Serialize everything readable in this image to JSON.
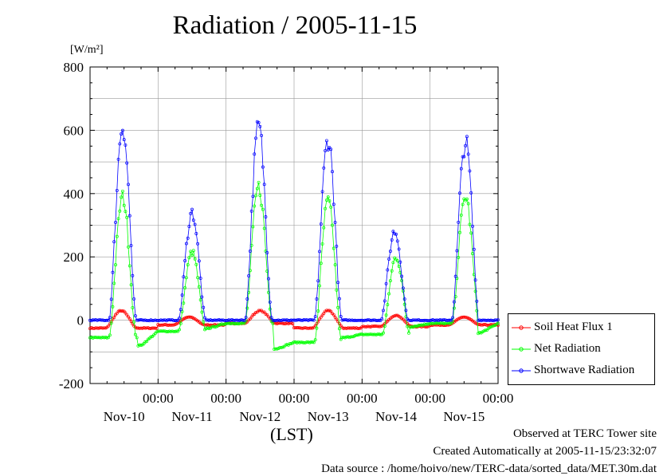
{
  "chart_data": {
    "type": "line",
    "title": "Radiation / 2005-11-15",
    "ylabel": "[W/m²]",
    "xlabel": "(LST)",
    "ylim": [
      -200,
      800
    ],
    "y_ticks": [
      -200,
      0,
      200,
      400,
      600,
      800
    ],
    "x_range_hours": [
      0,
      144
    ],
    "x_ticks": [
      {
        "time": "00:00",
        "date": "Nov-10",
        "hour": 24
      },
      {
        "time": "00:00",
        "date": "Nov-11",
        "hour": 48
      },
      {
        "time": "00:00",
        "date": "Nov-12",
        "hour": 72
      },
      {
        "time": "00:00",
        "date": "Nov-13",
        "hour": 96
      },
      {
        "time": "00:00",
        "date": "Nov-14",
        "hour": 120
      },
      {
        "time": "00:00",
        "date": "Nov-15",
        "hour": 144
      }
    ],
    "grid": true,
    "legend_position": "right-bottom",
    "series": [
      {
        "name": "Soil Heat Flux 1",
        "color": "#ff0000",
        "marker": "circle",
        "days": [
          {
            "day": 0,
            "night": -25,
            "peak": 30,
            "peak_hour": 11,
            "rise": 6,
            "set": 17
          },
          {
            "day": 1,
            "night": -15,
            "peak": 10,
            "peak_hour": 11,
            "rise": 6,
            "set": 17
          },
          {
            "day": 2,
            "night": -10,
            "peak": 30,
            "peak_hour": 12,
            "rise": 6,
            "set": 17
          },
          {
            "day": 3,
            "night": -25,
            "peak": 30,
            "peak_hour": 12,
            "rise": 6,
            "set": 17
          },
          {
            "day": 4,
            "night": -20,
            "peak": 15,
            "peak_hour": 12,
            "rise": 6,
            "set": 17
          },
          {
            "day": 5,
            "night": -15,
            "peak": 10,
            "peak_hour": 12,
            "rise": 6,
            "set": 17
          }
        ]
      },
      {
        "name": "Net Radiation",
        "color": "#00ff00",
        "marker": "circle",
        "days": [
          {
            "day": 0,
            "night": -55,
            "peak": 390,
            "peak_hour": 11.5,
            "rise": 7,
            "set": 16.5,
            "after": -80
          },
          {
            "day": 1,
            "night": -35,
            "peak": 215,
            "peak_hour": 12,
            "rise": 7,
            "set": 16.5,
            "after": -25
          },
          {
            "day": 2,
            "night": -10,
            "peak": 420,
            "peak_hour": 11.5,
            "rise": 7,
            "set": 16.5,
            "after": -90
          },
          {
            "day": 3,
            "night": -70,
            "peak": 375,
            "peak_hour": 12,
            "rise": 7,
            "set": 16.5,
            "after": -55
          },
          {
            "day": 4,
            "night": -45,
            "peak": 200,
            "peak_hour": 12,
            "rise": 7,
            "set": 16.5,
            "after": -20
          },
          {
            "day": 5,
            "night": -10,
            "peak": 390,
            "peak_hour": 12.5,
            "rise": 7,
            "set": 16.5,
            "after": -40
          }
        ]
      },
      {
        "name": "Shortwave Radiation",
        "color": "#0000ff",
        "marker": "circle",
        "days": [
          {
            "day": 0,
            "night": 0,
            "peak": 615,
            "peak_hour": 11.5,
            "rise": 7,
            "set": 16.5
          },
          {
            "day": 1,
            "night": 0,
            "peak": 340,
            "peak_hour": 12,
            "rise": 7,
            "set": 16.5
          },
          {
            "day": 2,
            "night": 0,
            "peak": 612,
            "peak_hour": 11.5,
            "rise": 7,
            "set": 16.5
          },
          {
            "day": 3,
            "night": 0,
            "peak": 572,
            "peak_hour": 12,
            "rise": 7,
            "set": 16.5
          },
          {
            "day": 4,
            "night": 0,
            "peak": 280,
            "peak_hour": 11.5,
            "rise": 7,
            "set": 16.5
          },
          {
            "day": 5,
            "night": 0,
            "peak": 562,
            "peak_hour": 12.5,
            "rise": 7,
            "set": 16.5
          }
        ]
      }
    ]
  },
  "footer": {
    "line1": "Observed at TERC Tower site",
    "line2": "Created Automatically at 2005-11-15/23:32:07",
    "line3": "Data source : /home/hoivo/new/TERC-data/sorted_data/MET.30m.dat"
  }
}
